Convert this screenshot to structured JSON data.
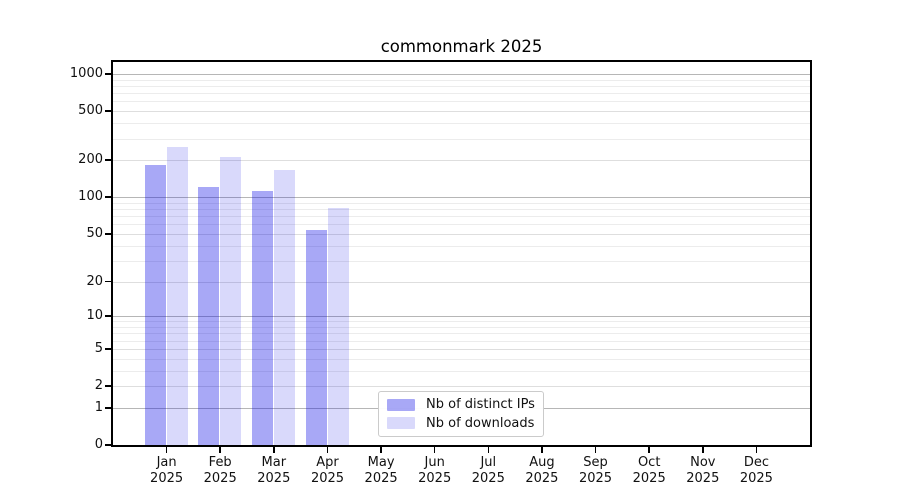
{
  "title": "commonmark 2025",
  "legend": {
    "items": [
      {
        "label": "Nb of distinct IPs",
        "color": "rgba(0,0,230,0.34)"
      },
      {
        "label": "Nb of downloads",
        "color": "rgba(0,0,230,0.15)"
      }
    ]
  },
  "chart_data": {
    "type": "bar",
    "title": "commonmark 2025",
    "categories": [
      "Jan 2025",
      "Feb 2025",
      "Mar 2025",
      "Apr 2025",
      "May 2025",
      "Jun 2025",
      "Jul 2025",
      "Aug 2025",
      "Sep 2025",
      "Oct 2025",
      "Nov 2025",
      "Dec 2025"
    ],
    "series": [
      {
        "name": "Nb of distinct IPs",
        "color": "rgba(0,0,230,0.34)",
        "values": [
          183,
          122,
          112,
          54,
          null,
          null,
          null,
          null,
          null,
          null,
          null,
          null
        ]
      },
      {
        "name": "Nb of downloads",
        "color": "rgba(0,0,230,0.15)",
        "values": [
          258,
          213,
          168,
          81,
          null,
          null,
          null,
          null,
          null,
          null,
          null,
          null
        ]
      }
    ],
    "xlabel": "",
    "ylabel": "",
    "y_scale": "symlog (position proportional to ln(1+v))",
    "y_ticks": [
      0,
      1,
      2,
      5,
      10,
      20,
      50,
      100,
      200,
      500,
      1000
    ],
    "y_minor_ticks": [
      3,
      4,
      6,
      7,
      8,
      9,
      30,
      40,
      60,
      70,
      80,
      90,
      300,
      400,
      600,
      700,
      800,
      900
    ],
    "ylim": [
      0,
      1250
    ],
    "grid": true,
    "legend_position": "lower center"
  }
}
